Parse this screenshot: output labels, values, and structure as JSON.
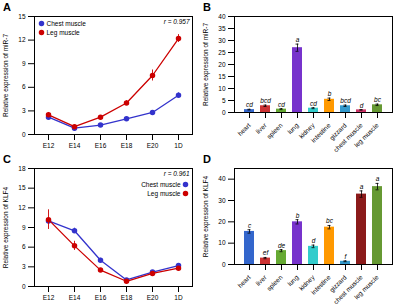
{
  "chart_data": [
    {
      "type": "line",
      "title": "A",
      "categories": [
        "E12",
        "E14",
        "E16",
        "E18",
        "E20",
        "1D"
      ],
      "series": [
        {
          "name": "Chest muscle",
          "color": "#3333cc",
          "values": [
            2.2,
            0.8,
            1.2,
            2.0,
            2.8,
            5.0
          ],
          "errors": [
            0.2,
            0.15,
            0.1,
            0.15,
            0.2,
            0.3
          ]
        },
        {
          "name": "Leg muscle",
          "color": "#cc0000",
          "values": [
            2.5,
            1.0,
            2.2,
            4.0,
            7.5,
            12.2
          ],
          "errors": [
            0.3,
            0.1,
            0.15,
            0.3,
            0.7,
            0.5
          ]
        }
      ],
      "ylim": [
        0,
        15
      ],
      "yticks": [
        0,
        3,
        6,
        9,
        12,
        15
      ],
      "ylabel": "Relative expression of miR-7",
      "annotations": [
        "r = 0.957"
      ],
      "legend": "upper left",
      "marker": "circle",
      "grid": false
    },
    {
      "type": "bar",
      "title": "B",
      "categories": [
        "heart",
        "liver",
        "spleen",
        "lung",
        "kidney",
        "intestine",
        "gizzard",
        "chest muscle",
        "leg muscle"
      ],
      "values": [
        1.2,
        2.8,
        1.4,
        27.0,
        1.8,
        5.5,
        2.8,
        1.1,
        3.2
      ],
      "errors": [
        0.15,
        0.3,
        0.2,
        1.5,
        0.2,
        0.5,
        0.3,
        0.12,
        0.3
      ],
      "colors": [
        "#3366cc",
        "#cc3333",
        "#66aa33",
        "#7733cc",
        "#33cccc",
        "#ff9900",
        "#3399cc",
        "#cc3366",
        "#669933"
      ],
      "annotations": [
        "cd",
        "bcd",
        "cd",
        "a",
        "cd",
        "b",
        "bcd",
        "d",
        "bc"
      ],
      "ylim": [
        0,
        40
      ],
      "yticks": [
        0,
        5,
        10,
        15,
        20,
        25,
        30,
        35,
        40
      ],
      "ylabel": "Relative expression of miR-7",
      "grid": false
    },
    {
      "type": "line",
      "title": "C",
      "categories": [
        "E12",
        "E14",
        "E16",
        "E18",
        "E20",
        "1D"
      ],
      "series": [
        {
          "name": "Chest muscle",
          "color": "#3333cc",
          "values": [
            10.0,
            8.5,
            4.0,
            1.0,
            2.2,
            3.2
          ],
          "errors": [
            0.5,
            0.4,
            0.3,
            0.1,
            0.2,
            0.25
          ]
        },
        {
          "name": "Leg muscle",
          "color": "#cc0000",
          "values": [
            10.2,
            6.2,
            2.5,
            0.8,
            2.0,
            2.8
          ],
          "errors": [
            1.5,
            0.7,
            0.2,
            0.1,
            0.15,
            0.2
          ]
        }
      ],
      "ylim": [
        0,
        18
      ],
      "yticks": [
        0,
        3,
        6,
        9,
        12,
        15,
        18
      ],
      "ylabel": "Relative expression of KLF4",
      "annotations": [
        "r = 0.961"
      ],
      "legend": "upper right",
      "marker": "circle",
      "grid": false
    },
    {
      "type": "bar",
      "title": "D",
      "categories": [
        "heart",
        "liver",
        "spleen",
        "lung",
        "kidney",
        "intestine",
        "gizzard",
        "chest muscle",
        "leg muscle"
      ],
      "values": [
        15.5,
        3.0,
        6.5,
        20.0,
        8.5,
        17.5,
        1.5,
        33.0,
        36.5
      ],
      "errors": [
        0.8,
        0.3,
        0.5,
        1.0,
        0.6,
        0.8,
        0.2,
        1.5,
        1.5
      ],
      "colors": [
        "#3366cc",
        "#cc3333",
        "#66aa33",
        "#7733cc",
        "#33cccc",
        "#ff9900",
        "#3399cc",
        "#8b1a1a",
        "#669933"
      ],
      "annotations": [
        "c",
        "ef",
        "de",
        "b",
        "d",
        "bc",
        "f",
        "a",
        "a"
      ],
      "ylim": [
        0,
        45
      ],
      "yticks": [
        0,
        10,
        20,
        30,
        40
      ],
      "ylabel": "Relative expression of KLF4",
      "grid": false
    }
  ]
}
